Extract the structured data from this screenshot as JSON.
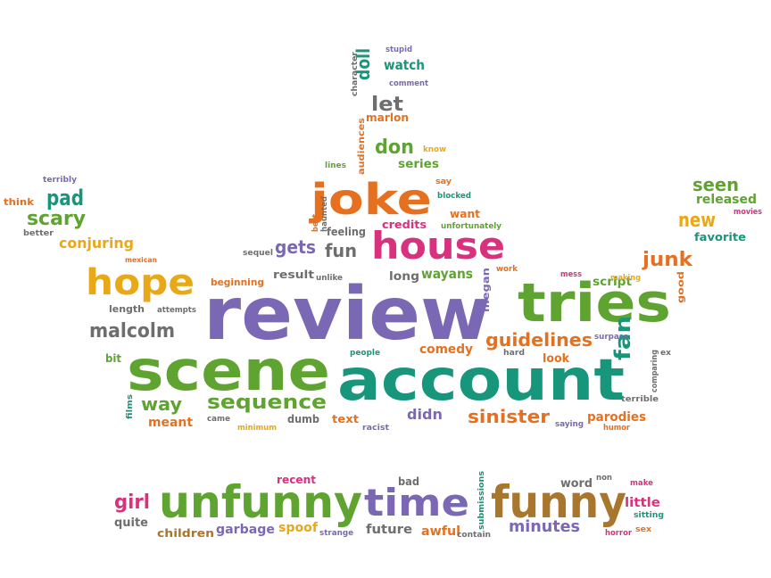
{
  "palette": {
    "purple": "#7b68b4",
    "green": "#5fa331",
    "teal": "#17967b",
    "orange": "#e5701f",
    "yellow": "#e8a817",
    "magenta": "#d8327f",
    "gray": "#6e6e6e",
    "brown": "#a8772d"
  },
  "words": [
    {
      "text": "review",
      "color": "purple"
    },
    {
      "text": "account",
      "color": "teal"
    },
    {
      "text": "scene",
      "color": "green"
    },
    {
      "text": "tries",
      "color": "green"
    },
    {
      "text": "unfunny",
      "color": "green"
    },
    {
      "text": "funny",
      "color": "brown"
    },
    {
      "text": "time",
      "color": "purple"
    },
    {
      "text": "joke",
      "color": "orange"
    },
    {
      "text": "house",
      "color": "magenta"
    },
    {
      "text": "hope",
      "color": "yellow"
    },
    {
      "text": "sequence",
      "color": "green"
    },
    {
      "text": "guidelines",
      "color": "orange"
    },
    {
      "text": "malcolm",
      "color": "gray"
    },
    {
      "text": "sinister",
      "color": "orange"
    },
    {
      "text": "way",
      "color": "green"
    },
    {
      "text": "junk",
      "color": "orange"
    },
    {
      "text": "new",
      "color": "yellow"
    },
    {
      "text": "seen",
      "color": "green"
    },
    {
      "text": "pad",
      "color": "teal"
    },
    {
      "text": "scary",
      "color": "green"
    },
    {
      "text": "fan",
      "color": "teal"
    },
    {
      "text": "gets",
      "color": "purple"
    },
    {
      "text": "fun",
      "color": "gray"
    },
    {
      "text": "don",
      "color": "green"
    },
    {
      "text": "let",
      "color": "gray"
    },
    {
      "text": "doll",
      "color": "teal"
    },
    {
      "text": "conjuring",
      "color": "yellow"
    },
    {
      "text": "girl",
      "color": "magenta"
    },
    {
      "text": "minutes",
      "color": "purple"
    },
    {
      "text": "released",
      "color": "green"
    },
    {
      "text": "wayans",
      "color": "green"
    },
    {
      "text": "comedy",
      "color": "orange"
    },
    {
      "text": "parodies",
      "color": "orange"
    },
    {
      "text": "didn",
      "color": "purple"
    },
    {
      "text": "script",
      "color": "green"
    },
    {
      "text": "long",
      "color": "gray"
    },
    {
      "text": "meant",
      "color": "orange"
    },
    {
      "text": "watch",
      "color": "teal"
    },
    {
      "text": "garbage",
      "color": "purple"
    },
    {
      "text": "children",
      "color": "brown"
    },
    {
      "text": "awful",
      "color": "orange"
    },
    {
      "text": "little",
      "color": "magenta"
    },
    {
      "text": "spoof",
      "color": "yellow"
    },
    {
      "text": "future",
      "color": "gray"
    },
    {
      "text": "quite",
      "color": "gray"
    },
    {
      "text": "word",
      "color": "gray"
    },
    {
      "text": "favorite",
      "color": "teal"
    },
    {
      "text": "look",
      "color": "orange"
    },
    {
      "text": "megan",
      "color": "purple"
    },
    {
      "text": "marlon",
      "color": "orange"
    },
    {
      "text": "series",
      "color": "green"
    },
    {
      "text": "credits",
      "color": "magenta"
    },
    {
      "text": "want",
      "color": "orange"
    },
    {
      "text": "feeling",
      "color": "gray"
    },
    {
      "text": "result",
      "color": "gray"
    },
    {
      "text": "text",
      "color": "orange"
    },
    {
      "text": "dumb",
      "color": "gray"
    },
    {
      "text": "bit",
      "color": "green"
    },
    {
      "text": "length",
      "color": "gray"
    },
    {
      "text": "beginning",
      "color": "orange"
    },
    {
      "text": "think",
      "color": "orange"
    },
    {
      "text": "recent",
      "color": "magenta"
    },
    {
      "text": "bad",
      "color": "gray"
    },
    {
      "text": "audiences",
      "color": "orange"
    },
    {
      "text": "good",
      "color": "orange"
    },
    {
      "text": "sequel",
      "color": "gray"
    },
    {
      "text": "character",
      "color": "gray"
    },
    {
      "text": "stupid",
      "color": "purple"
    },
    {
      "text": "comment",
      "color": "purple"
    },
    {
      "text": "know",
      "color": "yellow"
    },
    {
      "text": "lines",
      "color": "green"
    },
    {
      "text": "say",
      "color": "orange"
    },
    {
      "text": "blocked",
      "color": "teal"
    },
    {
      "text": "haunted",
      "color": "gray"
    },
    {
      "text": "best",
      "color": "orange"
    },
    {
      "text": "unfortunately",
      "color": "green"
    },
    {
      "text": "unlike",
      "color": "gray"
    },
    {
      "text": "work",
      "color": "orange"
    },
    {
      "text": "mess",
      "color": "magenta"
    },
    {
      "text": "making",
      "color": "yellow"
    },
    {
      "text": "surpass",
      "color": "purple"
    },
    {
      "text": "comparing",
      "color": "gray"
    },
    {
      "text": "ex",
      "color": "gray"
    },
    {
      "text": "terrible",
      "color": "gray"
    },
    {
      "text": "humor",
      "color": "orange"
    },
    {
      "text": "saying",
      "color": "purple"
    },
    {
      "text": "people",
      "color": "teal"
    },
    {
      "text": "hard",
      "color": "gray"
    },
    {
      "text": "racist",
      "color": "purple"
    },
    {
      "text": "minimum",
      "color": "yellow"
    },
    {
      "text": "came",
      "color": "gray"
    },
    {
      "text": "films",
      "color": "teal"
    },
    {
      "text": "attempts",
      "color": "gray"
    },
    {
      "text": "terribly",
      "color": "purple"
    },
    {
      "text": "better",
      "color": "gray"
    },
    {
      "text": "mexican",
      "color": "orange"
    },
    {
      "text": "movies",
      "color": "magenta"
    },
    {
      "text": "submissions",
      "color": "teal"
    },
    {
      "text": "contain",
      "color": "gray"
    },
    {
      "text": "strange",
      "color": "purple"
    },
    {
      "text": "non",
      "color": "gray"
    },
    {
      "text": "make",
      "color": "magenta"
    },
    {
      "text": "sitting",
      "color": "teal"
    },
    {
      "text": "horror",
      "color": "magenta"
    },
    {
      "text": "sex",
      "color": "orange"
    }
  ]
}
